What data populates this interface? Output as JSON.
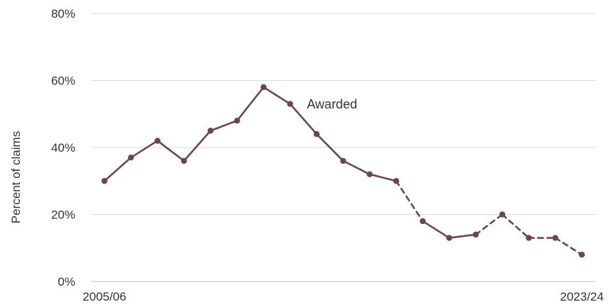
{
  "chart_data": {
    "type": "line",
    "ylabel": "Percent of claims",
    "ylim": [
      0,
      80
    ],
    "y_ticks": [
      "0%",
      "20%",
      "40%",
      "60%",
      "80%"
    ],
    "x_tick_labels": [
      "2005/06",
      "2023/24"
    ],
    "grid": "horizontal",
    "annotation": "Awarded",
    "series": [
      {
        "color": "#6b4651",
        "values": [
          30,
          37,
          42,
          36,
          45,
          48,
          58,
          53,
          44,
          36,
          32,
          30,
          18,
          13,
          14,
          20,
          13,
          13,
          8
        ],
        "dashed_segments": [
          [
            11,
            12
          ],
          [
            14,
            15
          ],
          [
            15,
            16
          ],
          [
            16,
            17
          ],
          [
            17,
            18
          ]
        ]
      }
    ]
  }
}
